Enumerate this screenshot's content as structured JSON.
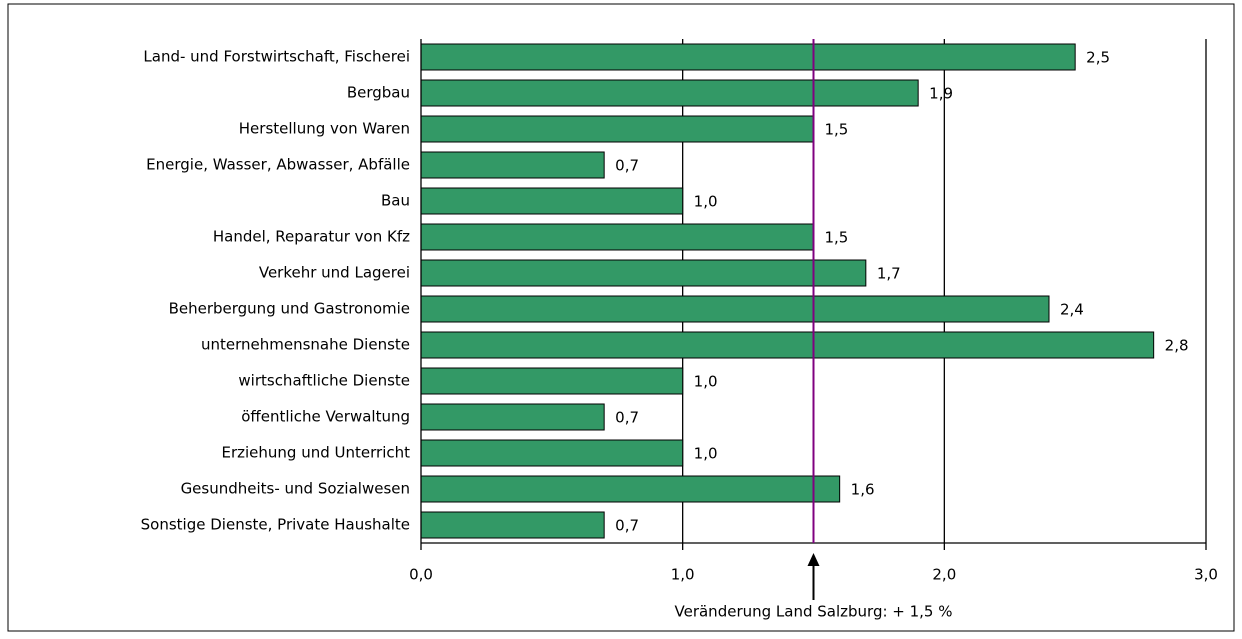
{
  "chart_data": {
    "type": "barh",
    "categories": [
      "Land- und Forstwirtschaft, Fischerei",
      "Bergbau",
      "Herstellung von Waren",
      "Energie, Wasser, Abwasser, Abfälle",
      "Bau",
      "Handel, Reparatur von Kfz",
      "Verkehr und Lagerei",
      "Beherbergung und Gastronomie",
      "unternehmensnahe Dienste",
      "wirtschaftliche Dienste",
      "öffentliche Verwaltung",
      "Erziehung und Unterricht",
      "Gesundheits- und Sozialwesen",
      "Sonstige Dienste, Private Haushalte"
    ],
    "values": [
      2.5,
      1.9,
      1.5,
      0.7,
      1.0,
      1.5,
      1.7,
      2.4,
      2.8,
      1.0,
      0.7,
      1.0,
      1.6,
      0.7
    ],
    "value_labels": [
      "2,5",
      "1,9",
      "1,5",
      "0,7",
      "1,0",
      "1,5",
      "1,7",
      "2,4",
      "2,8",
      "1,0",
      "0,7",
      "1,0",
      "1,6",
      "0,7"
    ],
    "color": "#339966",
    "xlim": [
      0,
      3
    ],
    "xticks": [
      {
        "value": 0,
        "label": "0,0"
      },
      {
        "value": 1,
        "label": "1,0"
      },
      {
        "value": 2,
        "label": "2,0"
      },
      {
        "value": 3,
        "label": "3,0"
      }
    ],
    "grid": true,
    "reference_line": {
      "value": 1.5,
      "label": "Veränderung Land Salzburg: + 1,5 %",
      "color": "#800080"
    }
  }
}
